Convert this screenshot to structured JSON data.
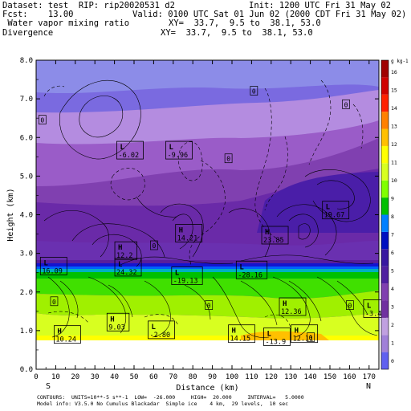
{
  "header": {
    "line1_left": "Dataset: test  RIP: rip20020531 d2",
    "line1_right": "Init: 1200 UTC Fri 31 May 02",
    "line2_left": "Fcst:    13.00",
    "line2_right": "Valid: 0100 UTC Sat 01 Jun 02 (2000 CDT Fri 31 May 02)",
    "line3_left": " Water vapor mixing ratio",
    "line3_right": "XY=  33.7,  9.5 to  38.1, 53.0",
    "line4_left": "Divergence",
    "line4_right": "XY=  33.7,  9.5 to  38.1, 53.0"
  },
  "footer": {
    "line1": "CONTOURS:  UNITS=10**-5 s**-1  LOW=  -26.000     HIGH=  20.000     INTERVAL=   5.0000",
    "line2": "Model info: V3.5.0 No Cumulus Blackadar  Simple ice    4 km,  29 levels,  10 sec"
  },
  "colors": {
    "background": "#ffffff",
    "terrain": "#ffffff",
    "contour": "#000000"
  },
  "chart_data": {
    "type": "contour_cross_section",
    "xlabel": "Distance (km)",
    "ylabel": "Height (km)",
    "x_ticks": [
      "0",
      "10",
      "20",
      "30",
      "40",
      "50",
      "60",
      "70",
      "80",
      "90",
      "100",
      "110",
      "120",
      "130",
      "140",
      "150",
      "160",
      "170"
    ],
    "y_ticks": [
      "0.0",
      "1.0",
      "2.0",
      "3.0",
      "4.0",
      "5.0",
      "6.0",
      "7.0",
      "8.0"
    ],
    "xlim": [
      0,
      175
    ],
    "ylim": [
      0,
      8
    ],
    "left_end_label": "S",
    "right_end_label": "N",
    "colorbar": {
      "unit": "g kg-1",
      "labels": [
        "16",
        "15",
        "14",
        "13",
        "12",
        "11",
        "10",
        "9",
        "8",
        "7",
        "6",
        "5",
        "4",
        "3",
        "2",
        "1",
        "0"
      ],
      "colors": [
        "#6060f0",
        "#a080d8",
        "#c0a0e0",
        "#7030a0",
        "#8040b0",
        "#5020a0",
        "#3818a0",
        "#0010c0",
        "#0080ff",
        "#00c000",
        "#80ff00",
        "#d8ff20",
        "#ffff00",
        "#ffc000",
        "#ff8000",
        "#ff2000",
        "#d00000",
        "#a00000"
      ]
    },
    "labels": [
      {
        "kind": "L",
        "value": "-6.02",
        "x": 42,
        "y": 5.65
      },
      {
        "kind": "L",
        "value": "-9.96",
        "x": 67,
        "y": 5.65
      },
      {
        "kind": "L",
        "value": "19.67",
        "x": 147,
        "y": 4.1
      },
      {
        "kind": "H",
        "value": "14.21",
        "x": 72,
        "y": 3.5
      },
      {
        "kind": "H",
        "value": "23.85",
        "x": 116,
        "y": 3.45
      },
      {
        "kind": "H",
        "value": "12.2",
        "x": 41,
        "y": 3.05
      },
      {
        "kind": "L",
        "value": "16.09",
        "x": 3,
        "y": 2.65
      },
      {
        "kind": "L",
        "value": "24.32",
        "x": 41,
        "y": 2.62
      },
      {
        "kind": "L",
        "value": "-19.13",
        "x": 70,
        "y": 2.4
      },
      {
        "kind": "L",
        "value": "-28.16",
        "x": 103,
        "y": 2.55
      },
      {
        "kind": "H",
        "value": "12.36",
        "x": 125,
        "y": 1.6
      },
      {
        "kind": "H",
        "value": "9.03",
        "x": 37,
        "y": 1.2
      },
      {
        "kind": "L",
        "value": "-2.80",
        "x": 58,
        "y": 1.0
      },
      {
        "kind": "H",
        "value": "10.24",
        "x": 10,
        "y": 0.88
      },
      {
        "kind": "H",
        "value": "14.15",
        "x": 99,
        "y": 0.9
      },
      {
        "kind": "L",
        "value": "-13.9",
        "x": 117,
        "y": 0.82
      },
      {
        "kind": "H",
        "value": "12.11",
        "x": 131,
        "y": 0.9
      },
      {
        "kind": "L",
        "value": "-3.4",
        "x": 168,
        "y": 1.55
      }
    ],
    "zero_labels": [
      {
        "value": "0",
        "x": 111,
        "y": 7.2
      },
      {
        "value": "0",
        "x": 3,
        "y": 6.45
      },
      {
        "value": "0",
        "x": 158,
        "y": 6.85
      },
      {
        "value": "0",
        "x": 98,
        "y": 5.45
      },
      {
        "value": "0",
        "x": 60,
        "y": 3.2
      },
      {
        "value": "0",
        "x": 9,
        "y": 1.75
      },
      {
        "value": "0",
        "x": 88,
        "y": 1.65
      },
      {
        "value": "0",
        "x": 160,
        "y": 1.65
      },
      {
        "value": "0",
        "x": 140,
        "y": 0.82
      }
    ]
  }
}
